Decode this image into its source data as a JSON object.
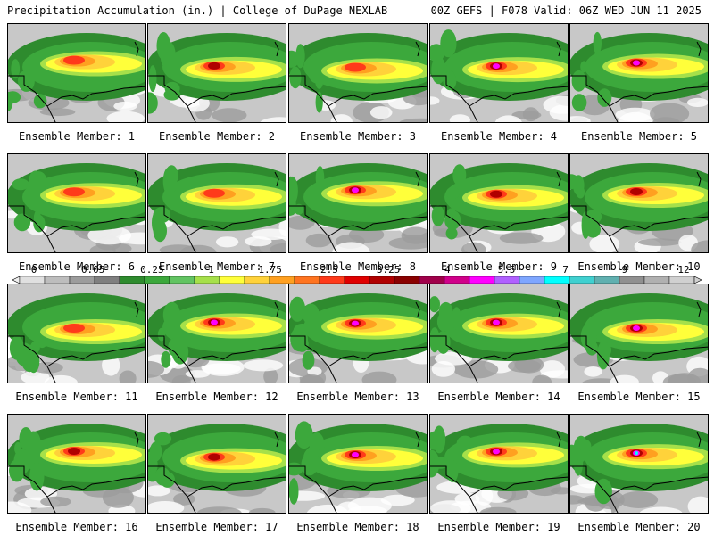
{
  "header": {
    "left_title": "Precipitation Accumulation (in.) | College of DuPage NEXLAB",
    "right_title": "00Z GEFS | F078 Valid: 06Z WED JUN 11 2025"
  },
  "legend": {
    "ticks": [
      "0",
      "0.05",
      "0.25",
      "1",
      "1.75",
      "2.5",
      "3.25",
      "4",
      "5.5",
      "7",
      "9",
      "12"
    ],
    "colors": [
      "#e0e0e0",
      "#bdbdbd",
      "#9c9c9c",
      "#7f7f7f",
      "#2e8b2e",
      "#3ca83c",
      "#62c462",
      "#a6e04a",
      "#ffff3a",
      "#ffd23a",
      "#ffa020",
      "#ff7420",
      "#ff3a1a",
      "#e00000",
      "#b00000",
      "#8a0000",
      "#a0004a",
      "#d0008a",
      "#ff00ff",
      "#b060ff",
      "#7ea6ff",
      "#00ffff",
      "#40d0d0",
      "#60b0b0",
      "#909090",
      "#b0b0b0",
      "#d0d0d0"
    ]
  },
  "panels": [
    {
      "label": "Ensemble Member: 1",
      "intensity": 2
    },
    {
      "label": "Ensemble Member: 2",
      "intensity": 3
    },
    {
      "label": "Ensemble Member: 3",
      "intensity": 2
    },
    {
      "label": "Ensemble Member: 4",
      "intensity": 4
    },
    {
      "label": "Ensemble Member: 5",
      "intensity": 4
    },
    {
      "label": "Ensemble Member: 6",
      "intensity": 2
    },
    {
      "label": "Ensemble Member: 7",
      "intensity": 2
    },
    {
      "label": "Ensemble Member: 8",
      "intensity": 4
    },
    {
      "label": "Ensemble Member: 9",
      "intensity": 3
    },
    {
      "label": "Ensemble Member: 10",
      "intensity": 3
    },
    {
      "label": "Ensemble Member: 11",
      "intensity": 2
    },
    {
      "label": "Ensemble Member: 12",
      "intensity": 4
    },
    {
      "label": "Ensemble Member: 13",
      "intensity": 4
    },
    {
      "label": "Ensemble Member: 14",
      "intensity": 4
    },
    {
      "label": "Ensemble Member: 15",
      "intensity": 4
    },
    {
      "label": "Ensemble Member: 16",
      "intensity": 3
    },
    {
      "label": "Ensemble Member: 17",
      "intensity": 3
    },
    {
      "label": "Ensemble Member: 18",
      "intensity": 4
    },
    {
      "label": "Ensemble Member: 19",
      "intensity": 4
    },
    {
      "label": "Ensemble Member: 20",
      "intensity": 5
    }
  ]
}
